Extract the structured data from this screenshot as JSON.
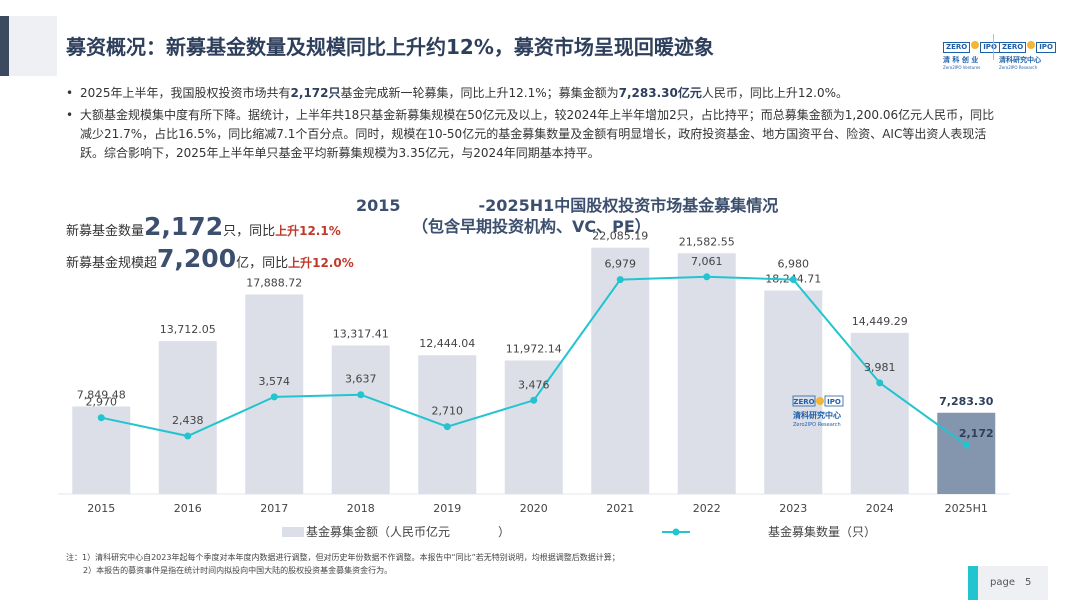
{
  "header": {
    "title": "募资概况：新募基金数量及规模同比上升约12%，募资市场呈现回暖迹象",
    "logo_left_mark": "ZERO",
    "logo_left_mark2": "IPO",
    "logo_left_cn": "清 科 创 业",
    "logo_left_en": "Zero2IPO Ventures",
    "logo_right_mark": "ZERO",
    "logo_right_mark2": "IPO",
    "logo_right_cn": "清科研究中心",
    "logo_right_en": "Zero2IPO Research"
  },
  "bullets": {
    "b1_pre": "2025年上半年，我国股权投资市场共有",
    "b1_bold1": "2,172只",
    "b1_mid": "基金完成新一轮募集，同比上升12.1%；募集金额为",
    "b1_bold2": "7,283.30亿元",
    "b1_post": "人民币，同比上升12.0%。",
    "b2": "大额基金规模集中度有所下降。据统计，上半年共18只基金新募集规模在50亿元及以上，较2024年上半年增加2只，占比持平；而总募集金额为1,200.06亿元人民币，同比减少21.7%，占比16.5%，同比缩减7.1个百分点。同时，规模在10-50亿元的基金募集数量及金额有明显增长，政府投资基金、地方国资平台、险资、AIC等出资人表现活跃。综合影响下，2025年上半年单只基金平均新募集规模为3.35亿元，与2024年同期基本持平。",
    "bullet_char": "•"
  },
  "kpi": {
    "count_pre": "新募基金数量",
    "count_value": "2,172",
    "count_unit": "只，同比",
    "count_change": "上升12.1%",
    "size_pre": "新募基金规模超",
    "size_value": "7,200",
    "size_unit": "亿，同比",
    "size_change": "上升12.0%"
  },
  "chart_data": {
    "type": "bar+line",
    "title_part1": "2015",
    "title_part2": "-2025H1中国股权投资市场基金募集情况",
    "subtitle": "（包含早期投资机构、VC、PE）",
    "categories": [
      "2015",
      "2016",
      "2017",
      "2018",
      "2019",
      "2020",
      "2021",
      "2022",
      "2023",
      "2024",
      "2025H1"
    ],
    "series": [
      {
        "name": "基金募集金额（人民币亿元　　　　）",
        "kind": "bar",
        "values": [
          7849.48,
          13712.05,
          17888.72,
          13317.41,
          12444.04,
          11972.14,
          22085.19,
          21582.55,
          18244.71,
          14449.29,
          7283.3
        ],
        "labels": [
          "7,849.48",
          "13,712.05",
          "17,888.72",
          "13,317.41",
          "12,444.04",
          "11,972.14",
          "22,085.19",
          "21,582.55",
          "18,244.71",
          "14,449.29",
          "7,283.30"
        ],
        "color": "#dcdfe7",
        "highlight_color": "#8496ae"
      },
      {
        "name": "基金募集数量（只）",
        "kind": "line",
        "values": [
          2970,
          2438,
          3574,
          3637,
          2710,
          3476,
          6979,
          7061,
          6980,
          3981,
          2172
        ],
        "labels": [
          "2,970",
          "2,438",
          "3,574",
          "3,637",
          "2,710",
          "3,476",
          "6,979",
          "7,061",
          "6,980",
          "3,981",
          "2,172"
        ],
        "color": "#22c4cf"
      }
    ],
    "bar_ylim": [
      0,
      26000
    ],
    "line_ylim": [
      0,
      9000
    ],
    "watermark_mark": "ZERO",
    "watermark_mark2": "IPO",
    "watermark_cn": "清科研究中心",
    "watermark_en": "Zero2IPO Research"
  },
  "notes": {
    "n1": "注：1）清科研究中心自2023年起每个季度对本年度内数据进行调整，但对历史年份数据不作调整。本报告中“同比”若无特别说明，均根据调整后数据计算；",
    "n2": "2）本报告的募资事件是指在统计时间内拟投向中国大陆的股权投资基金募集资金行为。"
  },
  "footer": {
    "page_label": "page",
    "page_number": "5"
  },
  "colors": {
    "accent_dark": "#3c4a60",
    "accent_cyan": "#22c4cf",
    "title": "#2e3f5c",
    "highlight_red": "#c0392b"
  }
}
